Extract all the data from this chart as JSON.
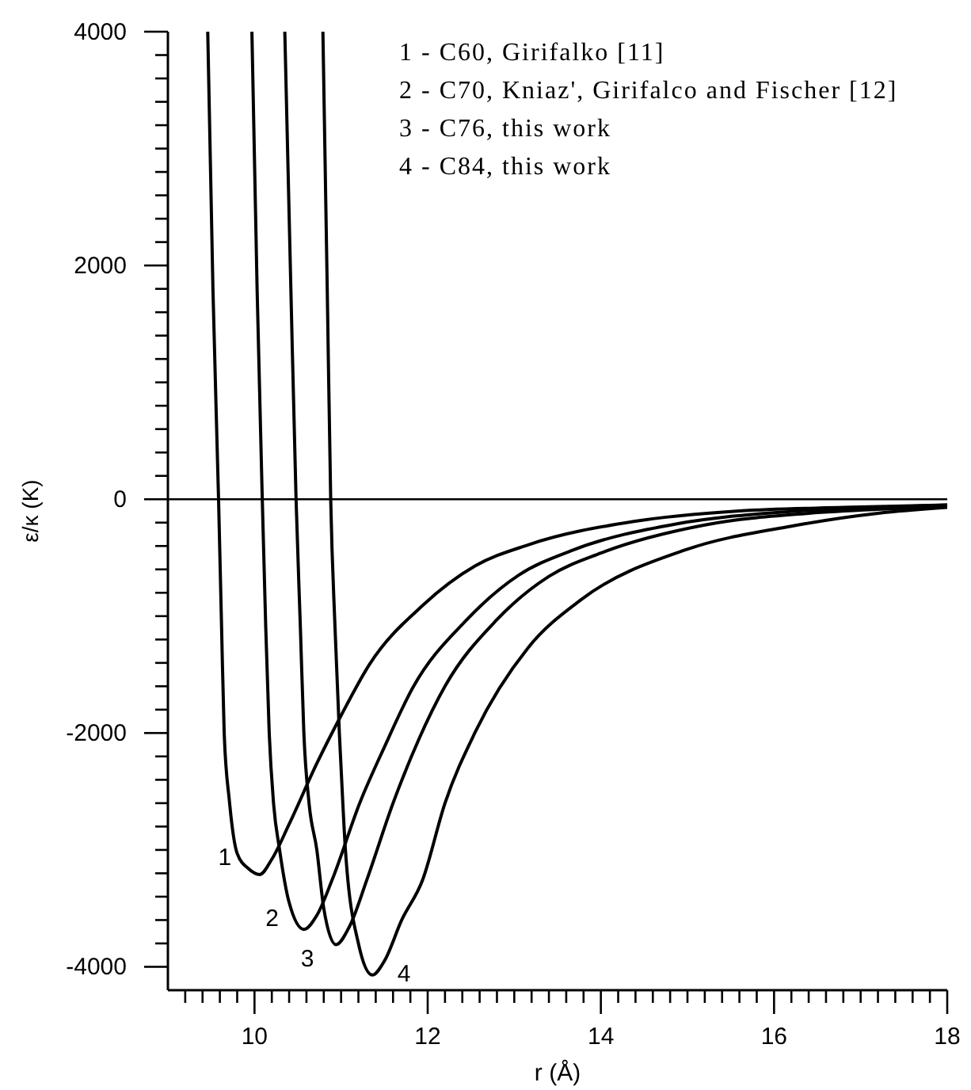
{
  "chart_data": {
    "type": "line",
    "xlabel": "r (Å)",
    "ylabel": "ε/κ (K)",
    "xlim": [
      9,
      18
    ],
    "ylim": [
      -4200,
      4000
    ],
    "xticks": [
      {
        "value": 9.2,
        "label": null
      },
      {
        "value": 9.4,
        "label": null
      },
      {
        "value": 9.6,
        "label": null
      },
      {
        "value": 9.8,
        "label": null
      },
      10,
      {
        "value": 10.2,
        "label": null
      },
      {
        "value": 10.4,
        "label": null
      },
      {
        "value": 10.6,
        "label": null
      },
      {
        "value": 10.8,
        "label": null
      },
      {
        "value": 11,
        "label": null
      },
      {
        "value": 11.2,
        "label": null
      },
      {
        "value": 11.4,
        "label": null
      },
      {
        "value": 11.6,
        "label": null
      },
      {
        "value": 11.8,
        "label": null
      },
      12,
      {
        "value": 12.2,
        "label": null
      },
      {
        "value": 12.4,
        "label": null
      },
      {
        "value": 12.6,
        "label": null
      },
      {
        "value": 12.8,
        "label": null
      },
      {
        "value": 13,
        "label": null
      },
      {
        "value": 13.2,
        "label": null
      },
      {
        "value": 13.4,
        "label": null
      },
      {
        "value": 13.6,
        "label": null
      },
      {
        "value": 13.8,
        "label": null
      },
      14,
      {
        "value": 14.2,
        "label": null
      },
      {
        "value": 14.4,
        "label": null
      },
      {
        "value": 14.6,
        "label": null
      },
      {
        "value": 14.8,
        "label": null
      },
      {
        "value": 15,
        "label": null
      },
      {
        "value": 15.2,
        "label": null
      },
      {
        "value": 15.4,
        "label": null
      },
      {
        "value": 15.6,
        "label": null
      },
      {
        "value": 15.8,
        "label": null
      },
      16,
      {
        "value": 16.2,
        "label": null
      },
      {
        "value": 16.4,
        "label": null
      },
      {
        "value": 16.6,
        "label": null
      },
      {
        "value": 16.8,
        "label": null
      },
      {
        "value": 17,
        "label": null
      },
      {
        "value": 17.2,
        "label": null
      },
      {
        "value": 17.4,
        "label": null
      },
      {
        "value": 17.6,
        "label": null
      },
      {
        "value": 17.8,
        "label": null
      },
      18
    ],
    "yticks": [
      -4000,
      {
        "value": -3800,
        "label": null
      },
      {
        "value": -3600,
        "label": null
      },
      {
        "value": -3400,
        "label": null
      },
      {
        "value": -3200,
        "label": null
      },
      {
        "value": -3000,
        "label": null
      },
      {
        "value": -2800,
        "label": null
      },
      {
        "value": -2600,
        "label": null
      },
      {
        "value": -2400,
        "label": null
      },
      {
        "value": -2200,
        "label": null
      },
      -2000,
      {
        "value": -1800,
        "label": null
      },
      {
        "value": -1600,
        "label": null
      },
      {
        "value": -1400,
        "label": null
      },
      {
        "value": -1200,
        "label": null
      },
      {
        "value": -1000,
        "label": null
      },
      {
        "value": -800,
        "label": null
      },
      {
        "value": -600,
        "label": null
      },
      {
        "value": -400,
        "label": null
      },
      {
        "value": -200,
        "label": null
      },
      0,
      {
        "value": 200,
        "label": null
      },
      {
        "value": 400,
        "label": null
      },
      {
        "value": 600,
        "label": null
      },
      {
        "value": 800,
        "label": null
      },
      {
        "value": 1000,
        "label": null
      },
      {
        "value": 1200,
        "label": null
      },
      {
        "value": 1400,
        "label": null
      },
      {
        "value": 1600,
        "label": null
      },
      {
        "value": 1800,
        "label": null
      },
      2000,
      {
        "value": 2200,
        "label": null
      },
      {
        "value": 2400,
        "label": null
      },
      {
        "value": 2600,
        "label": null
      },
      {
        "value": 2800,
        "label": null
      },
      {
        "value": 3000,
        "label": null
      },
      {
        "value": 3200,
        "label": null
      },
      {
        "value": 3400,
        "label": null
      },
      {
        "value": 3600,
        "label": null
      },
      {
        "value": 3800,
        "label": null
      },
      4000
    ],
    "grid": false,
    "legend": "bottom left",
    "marker": "none",
    "line_style": "solid",
    "ref_lines": [
      {
        "axis": "y",
        "value": 0,
        "color": "#000000"
      }
    ],
    "annotations": [
      "1 - C60, Girifalko [11]",
      "2 - C70, Kniaz', Girifalco and Fischer [12]",
      "3 - C76, this work",
      "4 - C84, this work"
    ],
    "series": [
      {
        "name": "1",
        "color": "#000000",
        "x": [
          9.46,
          9.52,
          9.585,
          9.62,
          9.65,
          9.71,
          9.8,
          9.93,
          10.06,
          10.2,
          10.4,
          10.72,
          11.0,
          11.33,
          11.94,
          12.55,
          13.16,
          14.38,
          15.6,
          16.8,
          18
        ],
        "values": [
          4000,
          1800,
          0,
          -1100,
          -2000,
          -2580,
          -3030,
          -3160,
          -3210,
          -3080,
          -2780,
          -2260,
          -1850,
          -1410,
          -910,
          -570,
          -390,
          -190,
          -100,
          -70,
          -50
        ]
      },
      {
        "name": "2",
        "color": "#000000",
        "x": [
          9.97,
          10.03,
          10.09,
          10.13,
          10.17,
          10.22,
          10.29,
          10.4,
          10.57,
          10.72,
          10.9,
          11.22,
          11.5,
          11.83,
          12.44,
          13.05,
          13.66,
          14.88,
          16.1,
          17.2,
          18
        ],
        "values": [
          4000,
          1800,
          0,
          -1100,
          -2000,
          -2600,
          -3000,
          -3450,
          -3680,
          -3560,
          -3250,
          -2590,
          -2120,
          -1610,
          -1040,
          -650,
          -440,
          -210,
          -110,
          -70,
          -50
        ]
      },
      {
        "name": "3",
        "color": "#000000",
        "x": [
          10.35,
          10.42,
          10.48,
          10.53,
          10.57,
          10.63,
          10.72,
          10.8,
          10.94,
          11.1,
          11.3,
          11.6,
          11.9,
          12.2,
          12.8,
          13.4,
          14.0,
          15.2,
          16.4,
          17.4,
          18
        ],
        "values": [
          4000,
          1800,
          0,
          -1100,
          -2000,
          -2600,
          -3000,
          -3500,
          -3810,
          -3650,
          -3250,
          -2600,
          -2050,
          -1600,
          -1030,
          -660,
          -460,
          -220,
          -120,
          -80,
          -60
        ]
      },
      {
        "name": "4",
        "color": "#000000",
        "x": [
          10.79,
          10.84,
          10.88,
          10.93,
          10.98,
          11.02,
          11.05,
          11.2,
          11.36,
          11.5,
          11.7,
          11.94,
          12.2,
          12.55,
          13.16,
          13.77,
          14.99,
          16.2,
          17.2,
          18
        ],
        "values": [
          4000,
          1800,
          0,
          -1100,
          -2000,
          -2600,
          -3000,
          -3800,
          -4070,
          -3950,
          -3600,
          -3260,
          -2600,
          -1990,
          -1270,
          -860,
          -430,
          -230,
          -120,
          -70
        ]
      }
    ]
  }
}
